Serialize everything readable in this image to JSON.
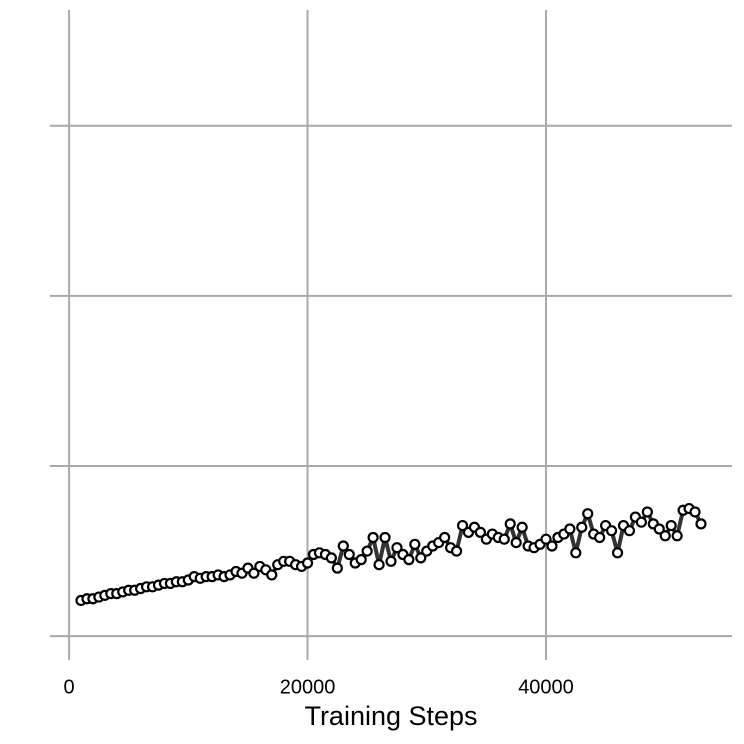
{
  "chart_data": {
    "type": "line",
    "xlabel": "Training Steps",
    "x": [
      1000,
      1500,
      2000,
      2500,
      3000,
      3500,
      4000,
      4500,
      5000,
      5500,
      6000,
      6500,
      7000,
      7500,
      8000,
      8500,
      9000,
      9500,
      10000,
      10500,
      11000,
      11500,
      12000,
      12500,
      13000,
      13500,
      14000,
      14500,
      15000,
      15500,
      16000,
      16500,
      17000,
      17500,
      18000,
      18500,
      19000,
      19500,
      20000,
      20500,
      21000,
      21500,
      22000,
      22500,
      23000,
      23500,
      24000,
      24500,
      25000,
      25500,
      26000,
      26500,
      27000,
      27500,
      28000,
      28500,
      29000,
      29500,
      30000,
      30500,
      31000,
      31500,
      32000,
      32500,
      33000,
      33500,
      34000,
      34500,
      35000,
      35500,
      36000,
      36500,
      37000,
      37500,
      38000,
      38500,
      39000,
      39500,
      40000,
      40500,
      41000,
      41500,
      42000,
      42500,
      43000,
      43500,
      44000,
      44500,
      45000,
      45500,
      46000,
      46500,
      47000,
      47500,
      48000,
      48500,
      49000,
      49500,
      50000,
      50500,
      51000,
      51500,
      52000,
      52500,
      53000
    ],
    "series": [
      {
        "color": "#333333",
        "marker_fill": "#ffffff",
        "marker_edge": "#000000",
        "values": [
          0.21,
          0.22,
          0.22,
          0.23,
          0.24,
          0.25,
          0.25,
          0.26,
          0.27,
          0.27,
          0.28,
          0.29,
          0.29,
          0.3,
          0.31,
          0.31,
          0.32,
          0.32,
          0.33,
          0.35,
          0.34,
          0.35,
          0.35,
          0.36,
          0.35,
          0.36,
          0.38,
          0.37,
          0.4,
          0.37,
          0.41,
          0.39,
          0.36,
          0.42,
          0.44,
          0.44,
          0.42,
          0.41,
          0.43,
          0.48,
          0.49,
          0.48,
          0.46,
          0.4,
          0.53,
          0.48,
          0.43,
          0.45,
          0.5,
          0.58,
          0.42,
          0.58,
          0.44,
          0.52,
          0.48,
          0.45,
          0.54,
          0.46,
          0.5,
          0.53,
          0.55,
          0.58,
          0.52,
          0.5,
          0.65,
          0.61,
          0.64,
          0.61,
          0.57,
          0.6,
          0.58,
          0.57,
          0.66,
          0.55,
          0.64,
          0.53,
          0.52,
          0.54,
          0.57,
          0.53,
          0.58,
          0.6,
          0.63,
          0.49,
          0.64,
          0.72,
          0.6,
          0.58,
          0.65,
          0.62,
          0.49,
          0.65,
          0.62,
          0.7,
          0.67,
          0.73,
          0.66,
          0.63,
          0.59,
          0.65,
          0.59,
          0.74,
          0.75,
          0.73,
          0.66
        ]
      }
    ],
    "xlim": [
      -1600,
      55600
    ],
    "xticks": [
      0,
      20000,
      40000
    ],
    "ylim": [
      -0.14,
      3.68
    ],
    "yticks": [
      0,
      1,
      2,
      3
    ],
    "ytick_labels": false,
    "grid": true
  }
}
